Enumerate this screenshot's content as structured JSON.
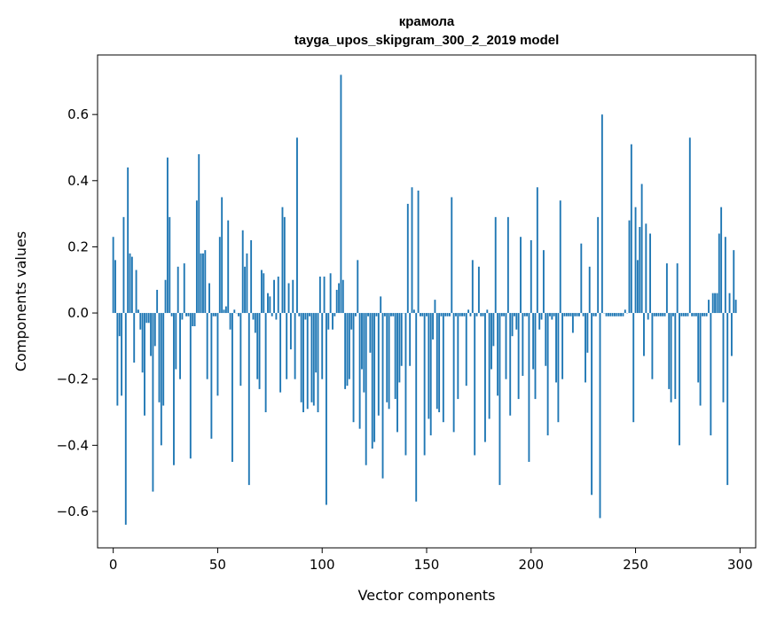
{
  "chart_data": {
    "type": "bar",
    "title": "крамола",
    "subtitle": "tayga_upos_skipgram_300_2_2019 model",
    "xlabel": "Vector components",
    "ylabel": "Components values",
    "xlim": [
      -7.5,
      307.5
    ],
    "ylim": [
      -0.71,
      0.78
    ],
    "xticks": [
      0,
      50,
      100,
      150,
      200,
      250,
      300
    ],
    "xtick_labels": [
      "0",
      "50",
      "100",
      "150",
      "200",
      "250",
      "300"
    ],
    "yticks": [
      -0.6,
      -0.4,
      -0.2,
      0.0,
      0.2,
      0.4,
      0.6
    ],
    "ytick_labels": [
      "−0.6",
      "−0.4",
      "−0.2",
      "0.0",
      "0.2",
      "0.4",
      "0.6"
    ],
    "grid": false,
    "bar_color": "#1f77b4",
    "values": [
      0.23,
      0.16,
      -0.28,
      -0.07,
      -0.25,
      0.29,
      -0.64,
      0.44,
      0.18,
      0.17,
      -0.15,
      0.13,
      0.01,
      -0.05,
      -0.18,
      -0.31,
      -0.03,
      -0.03,
      -0.13,
      -0.54,
      -0.1,
      0.07,
      -0.27,
      -0.4,
      -0.28,
      0.1,
      0.47,
      0.29,
      -0.01,
      -0.46,
      -0.17,
      0.14,
      -0.2,
      -0.02,
      0.15,
      -0.01,
      -0.01,
      -0.44,
      -0.04,
      -0.04,
      0.34,
      0.48,
      0.18,
      0.18,
      0.19,
      -0.2,
      0.09,
      -0.38,
      -0.01,
      -0.01,
      -0.25,
      0.23,
      0.35,
      0.01,
      0.02,
      0.28,
      -0.05,
      -0.45,
      0.01,
      0.0,
      -0.01,
      -0.22,
      0.25,
      0.14,
      0.18,
      -0.52,
      0.22,
      -0.02,
      -0.06,
      -0.2,
      -0.23,
      0.13,
      0.12,
      -0.3,
      0.06,
      0.05,
      -0.01,
      0.1,
      -0.02,
      0.11,
      -0.24,
      0.32,
      0.29,
      -0.2,
      0.09,
      -0.11,
      0.1,
      -0.2,
      0.53,
      -0.01,
      -0.27,
      -0.3,
      -0.02,
      -0.29,
      -0.01,
      -0.27,
      -0.28,
      -0.18,
      -0.3,
      0.11,
      -0.2,
      0.11,
      -0.58,
      -0.05,
      0.12,
      -0.05,
      -0.01,
      0.07,
      0.09,
      0.72,
      0.1,
      -0.23,
      -0.22,
      -0.2,
      -0.05,
      -0.33,
      -0.01,
      0.16,
      -0.35,
      -0.17,
      -0.24,
      -0.46,
      -0.01,
      -0.12,
      -0.41,
      -0.39,
      -0.01,
      -0.31,
      0.05,
      -0.5,
      -0.01,
      -0.27,
      -0.29,
      -0.01,
      -0.01,
      -0.26,
      -0.36,
      -0.21,
      -0.16,
      0.0,
      -0.43,
      0.33,
      -0.16,
      0.38,
      0.01,
      -0.57,
      0.37,
      -0.01,
      -0.01,
      -0.43,
      -0.01,
      -0.32,
      -0.37,
      -0.08,
      0.04,
      -0.29,
      -0.3,
      -0.01,
      -0.33,
      -0.01,
      -0.01,
      -0.01,
      0.35,
      -0.36,
      -0.01,
      -0.26,
      -0.01,
      -0.01,
      -0.01,
      -0.22,
      0.01,
      -0.01,
      0.16,
      -0.43,
      -0.01,
      0.14,
      -0.01,
      -0.01,
      -0.39,
      0.01,
      -0.32,
      -0.17,
      -0.1,
      0.29,
      -0.25,
      -0.52,
      -0.01,
      -0.01,
      -0.2,
      0.29,
      -0.31,
      -0.07,
      -0.01,
      -0.05,
      -0.26,
      0.23,
      -0.19,
      -0.01,
      -0.01,
      -0.45,
      0.22,
      -0.17,
      -0.26,
      0.38,
      -0.05,
      -0.02,
      0.19,
      -0.16,
      -0.37,
      -0.01,
      -0.02,
      -0.01,
      -0.21,
      -0.33,
      0.34,
      -0.2,
      -0.01,
      -0.01,
      -0.01,
      -0.01,
      -0.06,
      -0.01,
      -0.01,
      -0.01,
      0.21,
      -0.01,
      -0.21,
      -0.12,
      0.14,
      -0.55,
      -0.01,
      -0.01,
      0.29,
      -0.62,
      0.6,
      0.0,
      -0.01,
      -0.01,
      -0.01,
      -0.01,
      -0.01,
      -0.01,
      -0.01,
      -0.01,
      -0.01,
      0.01,
      0.0,
      0.28,
      0.51,
      -0.33,
      0.32,
      0.16,
      0.26,
      0.39,
      -0.13,
      0.27,
      -0.02,
      0.24,
      -0.2,
      -0.01,
      -0.01,
      -0.01,
      -0.01,
      -0.01,
      -0.01,
      0.15,
      -0.23,
      -0.27,
      -0.01,
      -0.26,
      0.15,
      -0.4,
      -0.01,
      -0.01,
      -0.01,
      -0.01,
      0.53,
      -0.01,
      -0.01,
      -0.01,
      -0.21,
      -0.28,
      -0.01,
      -0.01,
      -0.01,
      0.04,
      -0.37,
      0.06,
      0.06,
      0.06,
      0.24,
      0.32,
      -0.27,
      0.23,
      -0.52,
      0.06,
      -0.13,
      0.19,
      0.04
    ]
  }
}
